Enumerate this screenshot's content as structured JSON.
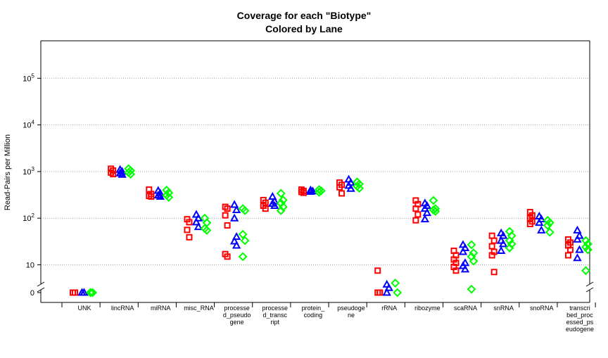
{
  "chart_data": {
    "type": "scatter",
    "title": "Coverage for each \"Biotype\"",
    "subtitle": "Colored by Lane",
    "xlabel": "",
    "ylabel": "Read-Pairs per Million",
    "y_scale": "log10 with break to zero at bottom",
    "y_ticks": [
      {
        "label": "0",
        "value": 0
      },
      {
        "label": "10",
        "value": 10
      },
      {
        "label": "10²",
        "value": 100
      },
      {
        "label": "10³",
        "value": 1000
      },
      {
        "label": "10⁴",
        "value": 10000
      },
      {
        "label": "10⁵",
        "value": 100000
      }
    ],
    "grid": "horizontal dotted",
    "categories": [
      "UNK",
      "lincRNA",
      "miRNA",
      "misc_RNA",
      "processe\nd_pseudo\ngene",
      "processe\nd_transc\nript",
      "protein_\ncoding",
      "pseudoge\nne",
      "rRNA",
      "ribozyme",
      "scaRNA",
      "snRNA",
      "snoRNA",
      "transcri\nbed_proc\nessed_ps\neudogene"
    ],
    "series": [
      {
        "color": "#ff0000",
        "marker": "square",
        "values": [
          [
            0,
            0,
            0,
            0
          ],
          [
            1150,
            1050,
            950,
            880
          ],
          [
            410,
            330,
            300,
            290
          ],
          [
            95,
            82,
            56,
            39
          ],
          [
            175,
            160,
            115,
            70,
            17,
            15
          ],
          [
            245,
            215,
            185,
            160
          ],
          [
            410,
            385,
            365,
            350
          ],
          [
            580,
            520,
            460,
            340
          ],
          [
            7.5,
            0,
            0,
            0
          ],
          [
            240,
            200,
            160,
            120,
            90
          ],
          [
            20,
            16,
            13,
            11,
            9,
            7.5
          ],
          [
            42,
            33,
            25,
            19,
            16,
            7
          ],
          [
            135,
            115,
            100,
            85,
            75
          ],
          [
            35,
            30,
            26,
            21,
            16
          ]
        ]
      },
      {
        "color": "#0000ff",
        "marker": "triangle",
        "values": [
          [
            0,
            0,
            0,
            0
          ],
          [
            1100,
            1000,
            920,
            860
          ],
          [
            390,
            340,
            310,
            290
          ],
          [
            120,
            100,
            82,
            65
          ],
          [
            195,
            150,
            100,
            40,
            32,
            26
          ],
          [
            290,
            230,
            205,
            185
          ],
          [
            400,
            380,
            370
          ],
          [
            680,
            580,
            500,
            430
          ],
          [
            3.8,
            3.2,
            0
          ],
          [
            210,
            185,
            160,
            130,
            95
          ],
          [
            27,
            23,
            19,
            11,
            9.5,
            8
          ],
          [
            48,
            42,
            33,
            28,
            20
          ],
          [
            110,
            95,
            80,
            55
          ],
          [
            55,
            42,
            35,
            21,
            14
          ]
        ]
      },
      {
        "color": "#00ff00",
        "marker": "diamond",
        "values": [
          [
            0,
            0,
            0,
            0
          ],
          [
            1150,
            1050,
            950,
            880
          ],
          [
            400,
            350,
            310,
            280
          ],
          [
            100,
            80,
            60,
            55
          ],
          [
            160,
            145,
            45,
            33,
            15
          ],
          [
            340,
            245,
            210,
            175,
            145
          ],
          [
            410,
            385,
            360
          ],
          [
            600,
            540,
            480,
            440
          ],
          [
            2.8,
            0
          ],
          [
            240,
            160,
            150,
            140
          ],
          [
            27,
            18,
            15,
            12,
            3
          ],
          [
            52,
            42,
            33,
            28,
            23
          ],
          [
            90,
            80,
            70,
            50
          ],
          [
            33,
            28,
            24,
            21,
            7.5
          ]
        ]
      }
    ]
  }
}
